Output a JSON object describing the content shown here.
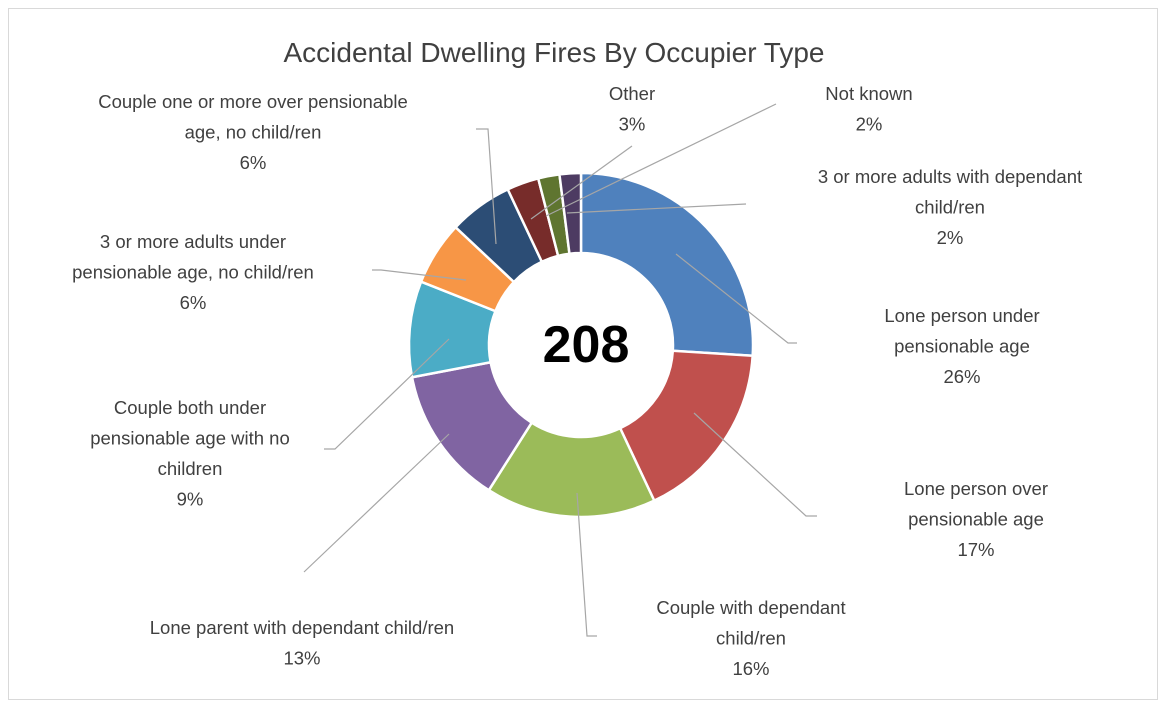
{
  "chart_data": {
    "type": "pie",
    "title": "Accidental Dwelling Fires By Occupier Type",
    "center_label": "208",
    "slices": [
      {
        "label": [
          "Lone person under",
          "pensionable age"
        ],
        "percent_label": "26%",
        "value": 26,
        "color": "#4f81bd"
      },
      {
        "label": [
          "Lone person over",
          "pensionable age"
        ],
        "percent_label": "17%",
        "value": 17,
        "color": "#c0504d"
      },
      {
        "label": [
          "Couple with dependant",
          "child/ren"
        ],
        "percent_label": "16%",
        "value": 16,
        "color": "#9bbb59"
      },
      {
        "label": [
          "Lone parent with dependant child/ren"
        ],
        "percent_label": "13%",
        "value": 13,
        "color": "#8064a2"
      },
      {
        "label": [
          "Couple both under",
          "pensionable age with no",
          "children"
        ],
        "percent_label": "9%",
        "value": 9,
        "color": "#4bacc6"
      },
      {
        "label": [
          "3 or more adults under",
          "pensionable age, no child/ren"
        ],
        "percent_label": "6%",
        "value": 6,
        "color": "#f79646"
      },
      {
        "label": [
          "Couple one or more over pensionable",
          "age, no child/ren"
        ],
        "percent_label": "6%",
        "value": 6,
        "color": "#2c4d75"
      },
      {
        "label": [
          "Other"
        ],
        "percent_label": "3%",
        "value": 3,
        "color": "#772c2a"
      },
      {
        "label": [
          "Not known"
        ],
        "percent_label": "2%",
        "value": 2,
        "color": "#5f7530"
      },
      {
        "label": [
          "3 or more adults with dependant",
          "child/ren"
        ],
        "percent_label": "2%",
        "value": 2,
        "color": "#4d3b62"
      }
    ]
  }
}
